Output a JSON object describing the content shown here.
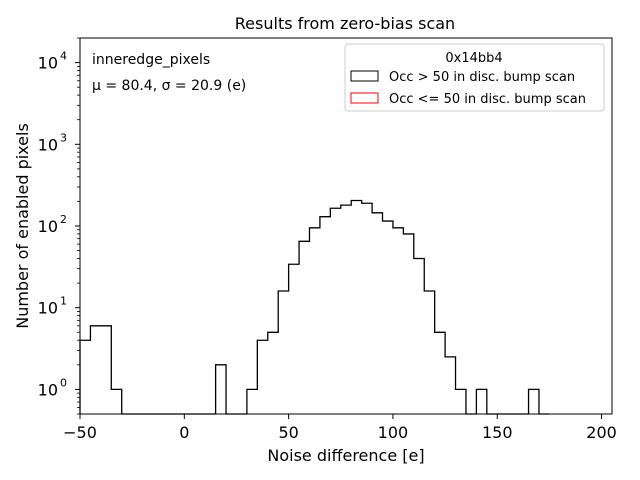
{
  "chart_data": {
    "type": "histogram",
    "title": "Results from zero-bias scan",
    "xlabel": "Noise difference [e]",
    "ylabel": "Number of enabled pixels",
    "xlim": [
      -50,
      205
    ],
    "ylim": [
      0.5,
      20000
    ],
    "yscale": "log",
    "x_ticks": [
      {
        "value": -50,
        "label": "−50"
      },
      {
        "value": 0,
        "label": "0"
      },
      {
        "value": 50,
        "label": "50"
      },
      {
        "value": 100,
        "label": "100"
      },
      {
        "value": 150,
        "label": "150"
      },
      {
        "value": 200,
        "label": "200"
      }
    ],
    "y_ticks": [
      {
        "value": 1,
        "base": "10",
        "exp": "0"
      },
      {
        "value": 10,
        "base": "10",
        "exp": "1"
      },
      {
        "value": 100,
        "base": "10",
        "exp": "2"
      },
      {
        "value": 1000,
        "base": "10",
        "exp": "3"
      },
      {
        "value": 10000,
        "base": "10",
        "exp": "4"
      }
    ],
    "annotations": {
      "label": "inneredge_pixels",
      "stats": "μ = 80.4, σ = 20.9 (e)"
    },
    "legend": {
      "title": "0x14bb4",
      "placement": "top-right",
      "entries": [
        {
          "label": "Occ > 50 in disc. bump scan",
          "color": "#000000"
        },
        {
          "label": "Occ <= 50 in disc. bump scan",
          "color": "#ff0000"
        }
      ]
    },
    "bin_width": 5,
    "series": [
      {
        "name": "Occ > 50 in disc. bump scan",
        "color": "#000000",
        "bin_starts": [
          -50,
          -45,
          -40,
          -35,
          -30,
          -25,
          -20,
          -15,
          -10,
          -5,
          0,
          5,
          10,
          15,
          20,
          25,
          30,
          35,
          40,
          45,
          50,
          55,
          60,
          65,
          70,
          75,
          80,
          85,
          90,
          95,
          100,
          105,
          110,
          115,
          120,
          125,
          130,
          135,
          140,
          145,
          150,
          155,
          160,
          165,
          170
        ],
        "counts": [
          4,
          6,
          6,
          1,
          0,
          0,
          0,
          0,
          0,
          0,
          0,
          0,
          0,
          2,
          0,
          0,
          1,
          4,
          5,
          16,
          34,
          65,
          95,
          130,
          165,
          180,
          205,
          190,
          145,
          115,
          95,
          80,
          40,
          16,
          5,
          2.5,
          1,
          0,
          1,
          0,
          0,
          0,
          0,
          1,
          0
        ]
      },
      {
        "name": "Occ <= 50 in disc. bump scan",
        "color": "#ff0000",
        "bin_starts": [],
        "counts": []
      }
    ],
    "grid": false
  }
}
